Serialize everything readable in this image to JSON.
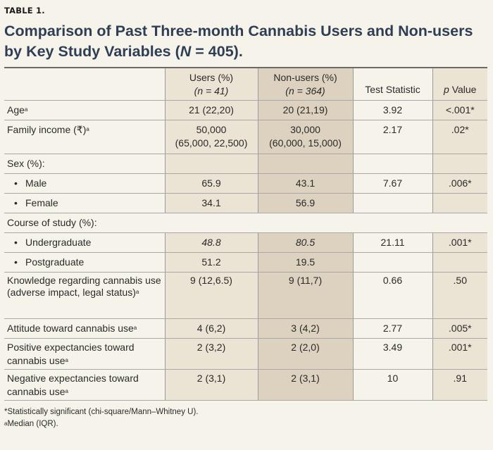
{
  "table_label": "TABLE 1.",
  "title": {
    "prefix": "Comparison of Past Three-month Cannabis Users and Non-users by Key Study Variables (",
    "n_symbol": "N",
    "suffix": " = 405)."
  },
  "header": {
    "users": "Users (%)",
    "users_n": "(n = 41)",
    "nonusers": "Non-users (%)",
    "nonusers_n": "(n = 364)",
    "test_statistic": "Test Statistic",
    "p_symbol": "p",
    "p_value": " Value"
  },
  "rows": {
    "age": {
      "label": "Age",
      "sup": "a",
      "users": "21 (22,20)",
      "nonusers": "20 (21,19)",
      "test": "3.92",
      "p": "<.001*"
    },
    "income": {
      "label": "Family income (₹)",
      "sup": "a",
      "users1": "50,000",
      "users2": "(65,000, 22,500)",
      "nonusers1": "30,000",
      "nonusers2": "(60,000, 15,000)",
      "test": "2.17",
      "p": ".02*"
    },
    "sex": {
      "label": "Sex (%):"
    },
    "male": {
      "bullet": "•",
      "label": "Male",
      "users": "65.9",
      "nonusers": "43.1",
      "test": "7.67",
      "p": ".006*"
    },
    "female": {
      "bullet": "•",
      "label": "Female",
      "users": "34.1",
      "nonusers": "56.9"
    },
    "course": {
      "label": "Course of study (%):"
    },
    "ug": {
      "bullet": "•",
      "label": "Undergraduate",
      "users": "48.8",
      "nonusers": "80.5",
      "test": "21.11",
      "p": ".001*"
    },
    "pg": {
      "bullet": "•",
      "label": "Postgraduate",
      "users": "51.2",
      "nonusers": "19.5"
    },
    "knowledge": {
      "label": "Knowledge regarding cannabis use (adverse impact, legal status)",
      "sup": "a",
      "users": "9 (12,6.5)",
      "nonusers": "9 (11,7)",
      "test": "0.66",
      "p": ".50"
    },
    "attitude": {
      "label": "Attitude toward cannabis use",
      "sup": "a",
      "users": "4 (6,2)",
      "nonusers": "3 (4,2)",
      "test": "2.77",
      "p": ".005*"
    },
    "positive": {
      "label": "Positive expectancies toward cannabis use",
      "sup": "a",
      "users": "2 (3,2)",
      "nonusers": "2 (2,0)",
      "test": "3.49",
      "p": ".001*"
    },
    "negative": {
      "label": "Negative expectancies toward cannabis use",
      "sup": "a",
      "users": "2 (3,1)",
      "nonusers": "2 (3,1)",
      "test": "10",
      "p": ".91"
    }
  },
  "footnotes": {
    "f1": "*Statistically significant (chi-square/Mann–Whitney U).",
    "f2_sup": "a",
    "f2": "Median (IQR)."
  }
}
